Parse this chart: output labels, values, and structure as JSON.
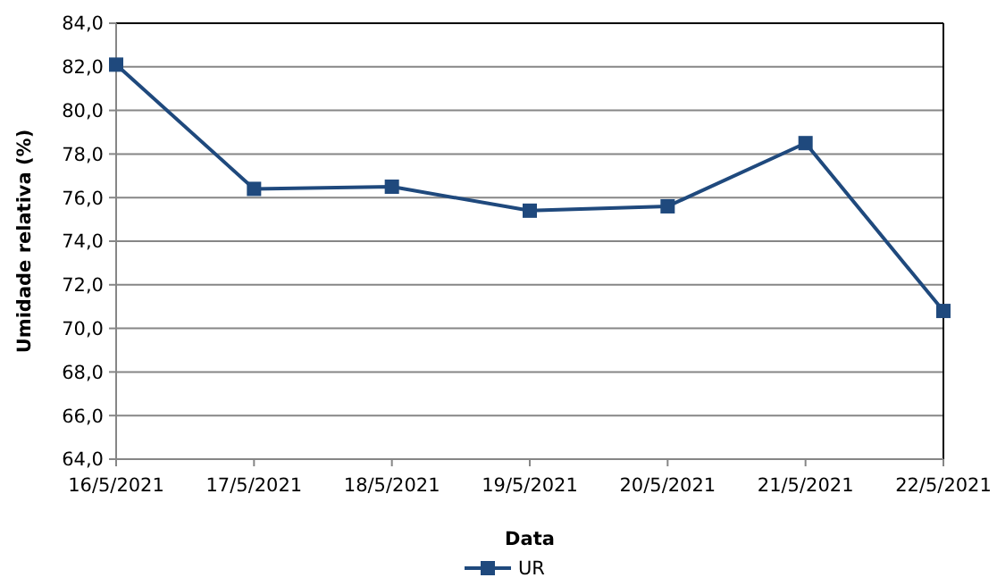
{
  "chart_data": {
    "type": "line",
    "xlabel": "Data",
    "ylabel": "Umidade relativa (%)",
    "categories": [
      "16/5/2021",
      "17/5/2021",
      "18/5/2021",
      "19/5/2021",
      "20/5/2021",
      "21/5/2021",
      "22/5/2021"
    ],
    "series": [
      {
        "name": "UR",
        "color": "#1f497d",
        "values": [
          82.1,
          76.4,
          76.5,
          75.4,
          75.6,
          78.5,
          70.8
        ]
      }
    ],
    "ylim": [
      64,
      84
    ],
    "yticks": [
      {
        "value": 64,
        "label": "64,0"
      },
      {
        "value": 66,
        "label": "66,0"
      },
      {
        "value": 68,
        "label": "68,0"
      },
      {
        "value": 70,
        "label": "70,0"
      },
      {
        "value": 72,
        "label": "72,0"
      },
      {
        "value": 74,
        "label": "74,0"
      },
      {
        "value": 76,
        "label": "76,0"
      },
      {
        "value": 78,
        "label": "78,0"
      },
      {
        "value": 80,
        "label": "80,0"
      },
      {
        "value": 82,
        "label": "82,0"
      },
      {
        "value": 84,
        "label": "84,0"
      }
    ],
    "grid": "y",
    "legend": "bottom",
    "marker": "square",
    "line_style": "solid"
  }
}
